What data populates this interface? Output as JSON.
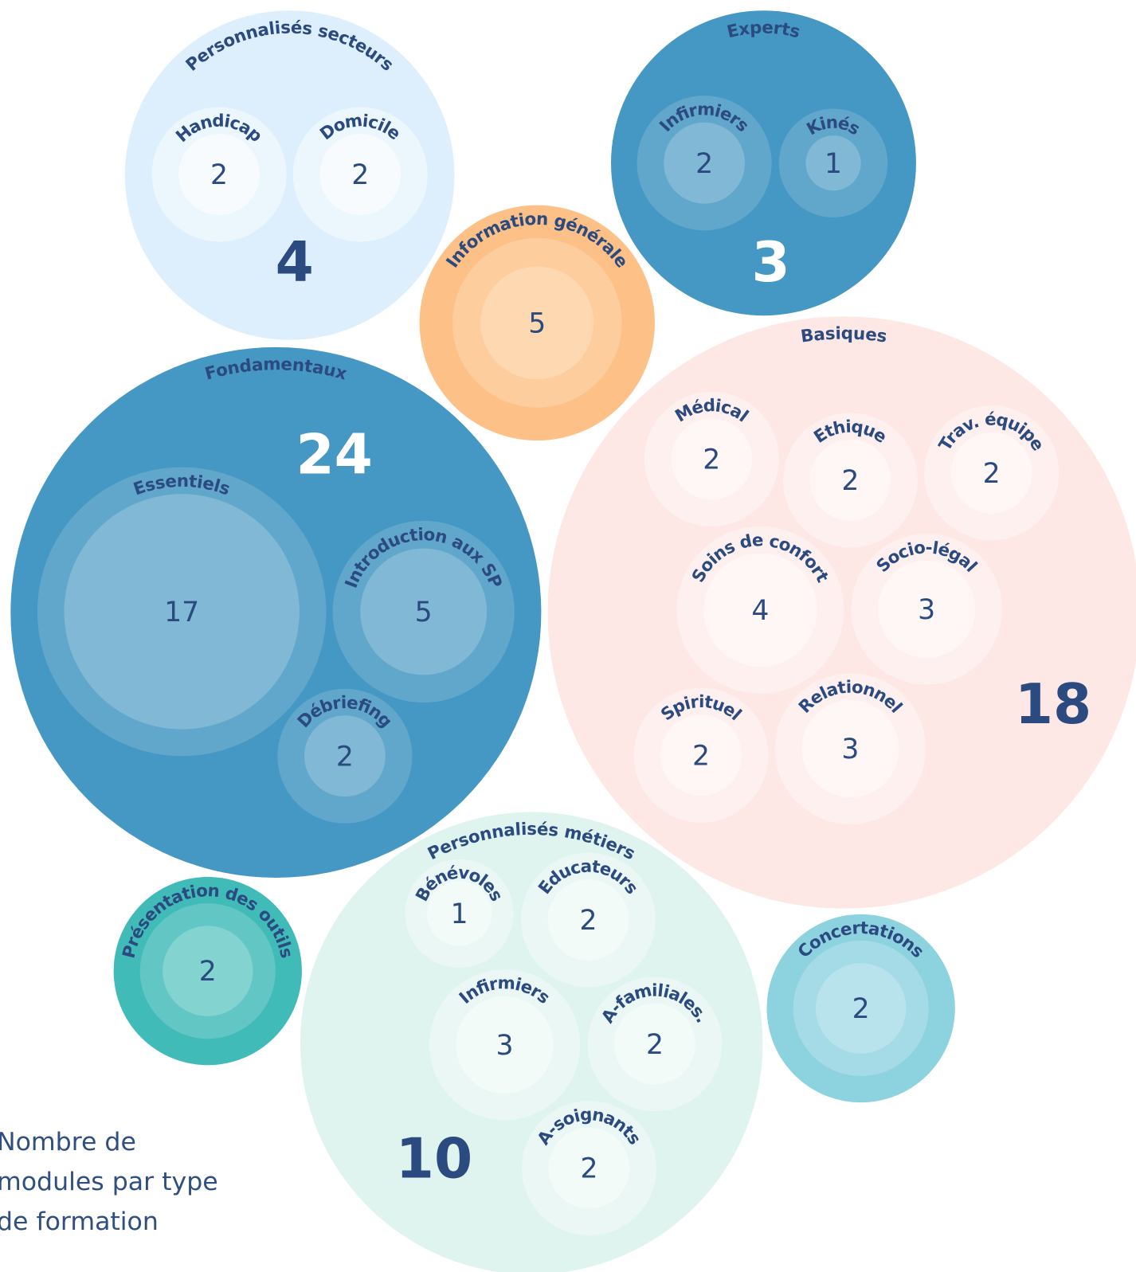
{
  "caption": "Nombre de modules par type de formation",
  "groups": [
    {
      "label": "Personnalisés secteurs",
      "total": 4,
      "children": [
        {
          "label": "Handicap",
          "value": 2
        },
        {
          "label": "Domicile",
          "value": 2
        }
      ]
    },
    {
      "label": "Experts",
      "total": 3,
      "children": [
        {
          "label": "Infirmiers",
          "value": 2
        },
        {
          "label": "Kinés",
          "value": 1
        }
      ]
    },
    {
      "label": "Information générale",
      "value": 5
    },
    {
      "label": "Fondamentaux",
      "total": 24,
      "children": [
        {
          "label": "Essentiels",
          "value": 17
        },
        {
          "label": "Introduction aux SP",
          "value": 5
        },
        {
          "label": "Débriefing",
          "value": 2
        }
      ]
    },
    {
      "label": "Basiques",
      "total": 18,
      "children": [
        {
          "label": "Médical",
          "value": 2
        },
        {
          "label": "Ethique",
          "value": 2
        },
        {
          "label": "Trav. équipe",
          "value": 2
        },
        {
          "label": "Soins de confort",
          "value": 4
        },
        {
          "label": "Socio-légal",
          "value": 3
        },
        {
          "label": "Spirituel",
          "value": 2
        },
        {
          "label": "Relationnel",
          "value": 3
        }
      ]
    },
    {
      "label": "Présentation des outils",
      "value": 2
    },
    {
      "label": "Personnalisés métiers",
      "total": 10,
      "children": [
        {
          "label": "Bénévoles",
          "value": 1
        },
        {
          "label": "Educateurs",
          "value": 2
        },
        {
          "label": "Infirmiers",
          "value": 3
        },
        {
          "label": "A-familiales.",
          "value": 2
        },
        {
          "label": "A-soignants",
          "value": 2
        }
      ]
    },
    {
      "label": "Concertations",
      "value": 2
    }
  ]
}
